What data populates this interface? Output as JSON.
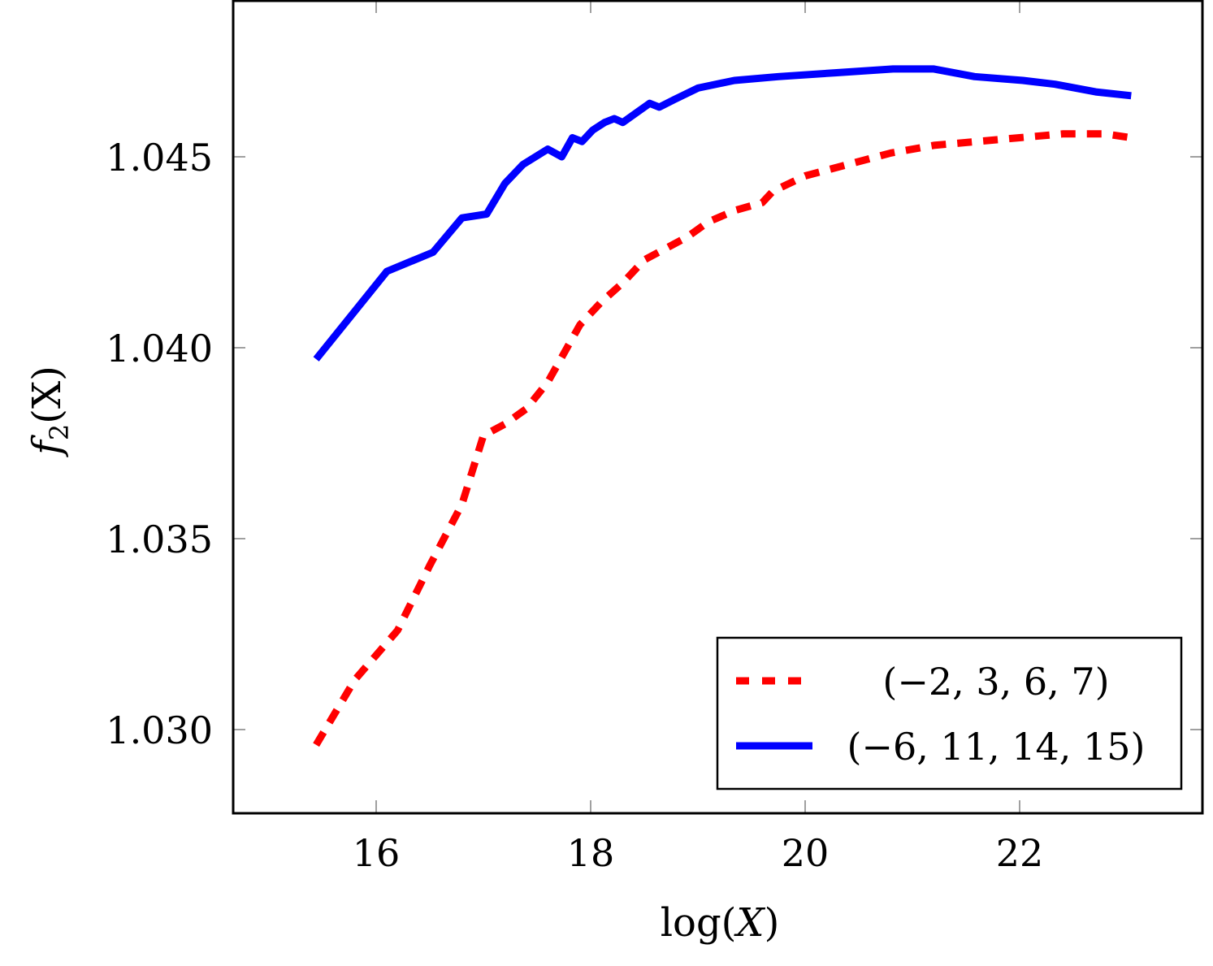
{
  "chart_data": {
    "type": "line",
    "title": "",
    "xlabel": "log(X)",
    "ylabel": "f2(X)",
    "xlim": [
      14.67,
      23.7
    ],
    "ylim": [
      1.0278,
      1.0491
    ],
    "xticks": [
      16,
      18,
      20,
      22
    ],
    "xtick_labels": [
      "16",
      "18",
      "20",
      "22"
    ],
    "yticks": [
      1.03,
      1.035,
      1.04,
      1.045
    ],
    "ytick_labels": [
      "1.030",
      "1.035",
      "1.040",
      "1.045"
    ],
    "grid": false,
    "legend_position": "lower right",
    "series": [
      {
        "name": "(−2, 3, 6, 7)",
        "color": "#ff0000",
        "style": "dashed",
        "x": [
          15.44,
          15.8,
          16.2,
          16.5,
          16.8,
          17.0,
          17.2,
          17.4,
          17.6,
          17.9,
          18.1,
          18.3,
          18.5,
          18.7,
          18.9,
          19.1,
          19.35,
          19.6,
          19.7,
          20.0,
          20.4,
          20.8,
          21.2,
          21.6,
          22.0,
          22.4,
          22.8,
          23.04
        ],
        "y": [
          1.0296,
          1.0313,
          1.0326,
          1.0343,
          1.0359,
          1.0377,
          1.038,
          1.0384,
          1.0391,
          1.0406,
          1.0412,
          1.0417,
          1.0423,
          1.0426,
          1.0429,
          1.0433,
          1.0436,
          1.0438,
          1.0441,
          1.0445,
          1.0448,
          1.0451,
          1.0453,
          1.0454,
          1.0455,
          1.0456,
          1.0456,
          1.0455
        ]
      },
      {
        "name": "(−6, 11, 14, 15)",
        "color": "#0000ff",
        "style": "solid",
        "x": [
          15.44,
          16.1,
          16.53,
          16.8,
          17.03,
          17.2,
          17.37,
          17.6,
          17.73,
          17.83,
          17.92,
          18.02,
          18.13,
          18.22,
          18.3,
          18.45,
          18.55,
          18.64,
          18.78,
          19.0,
          19.34,
          19.75,
          20.28,
          20.82,
          21.2,
          21.58,
          22.03,
          22.33,
          22.71,
          23.04
        ],
        "y": [
          1.0397,
          1.042,
          1.0425,
          1.0434,
          1.0435,
          1.0443,
          1.0448,
          1.0452,
          1.045,
          1.0455,
          1.0454,
          1.0457,
          1.0459,
          1.046,
          1.0459,
          1.0462,
          1.0464,
          1.0463,
          1.0465,
          1.0468,
          1.047,
          1.0471,
          1.0472,
          1.0473,
          1.0473,
          1.0471,
          1.047,
          1.0469,
          1.0467,
          1.0466
        ]
      }
    ]
  },
  "legend": {
    "items": [
      {
        "label": "(−2, 3, 6, 7)",
        "color": "#ff0000",
        "style": "dashed"
      },
      {
        "label": "(−6, 11, 14, 15)",
        "color": "#0000ff",
        "style": "solid"
      }
    ]
  },
  "axes": {
    "xlabel_main": "log(",
    "xlabel_var": "X",
    "xlabel_close": ")",
    "ylabel_f": "f",
    "ylabel_sub": "2",
    "ylabel_rest": "(X)"
  }
}
